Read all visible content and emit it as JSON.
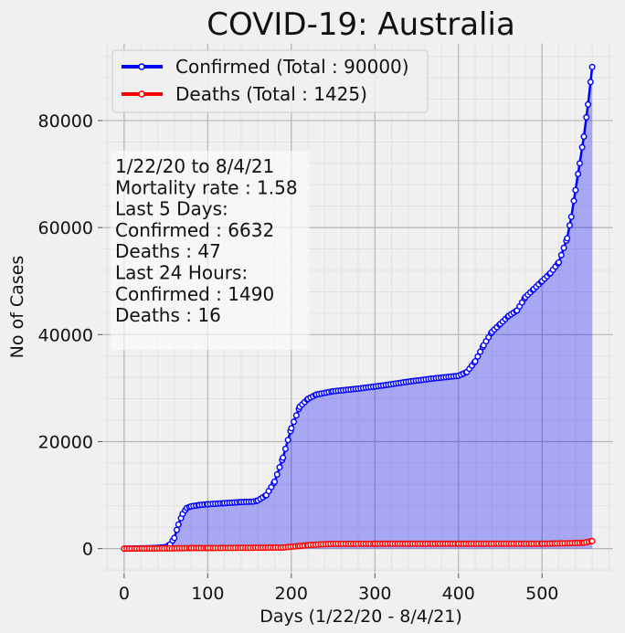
{
  "chart_data": {
    "type": "line",
    "title": "COVID-19: Australia",
    "xlabel": "Days (1/22/20 - 8/4/21)",
    "ylabel": "No of Cases",
    "xlim": [
      -25,
      585
    ],
    "ylim": [
      -4500,
      94500
    ],
    "x_ticks": [
      0,
      100,
      200,
      300,
      400,
      500
    ],
    "y_ticks": [
      0,
      20000,
      40000,
      60000,
      80000
    ],
    "x_tick_labels": [
      "0",
      "100",
      "200",
      "300",
      "400",
      "500"
    ],
    "y_tick_labels": [
      "0",
      "20000",
      "40000",
      "60000",
      "80000"
    ],
    "grid": true,
    "legend_position": "upper-left",
    "series": [
      {
        "name": "Confirmed (Total : 90000)",
        "color": "#0000ff",
        "fill_color": "#0000ff",
        "marker": "hollow-circle",
        "points": [
          [
            0,
            0
          ],
          [
            35,
            100
          ],
          [
            50,
            300
          ],
          [
            55,
            800
          ],
          [
            60,
            2000
          ],
          [
            65,
            4500
          ],
          [
            70,
            6500
          ],
          [
            75,
            7600
          ],
          [
            80,
            7900
          ],
          [
            90,
            8150
          ],
          [
            100,
            8300
          ],
          [
            120,
            8500
          ],
          [
            140,
            8700
          ],
          [
            155,
            8800
          ],
          [
            160,
            9000
          ],
          [
            170,
            10000
          ],
          [
            180,
            12500
          ],
          [
            190,
            17000
          ],
          [
            200,
            22500
          ],
          [
            210,
            26500
          ],
          [
            220,
            28000
          ],
          [
            230,
            28800
          ],
          [
            250,
            29400
          ],
          [
            280,
            29900
          ],
          [
            310,
            30500
          ],
          [
            340,
            31200
          ],
          [
            370,
            31800
          ],
          [
            400,
            32300
          ],
          [
            410,
            33000
          ],
          [
            420,
            35000
          ],
          [
            430,
            38000
          ],
          [
            440,
            40500
          ],
          [
            450,
            42000
          ],
          [
            460,
            43500
          ],
          [
            470,
            44500
          ],
          [
            480,
            47000
          ],
          [
            490,
            48500
          ],
          [
            500,
            50000
          ],
          [
            510,
            51500
          ],
          [
            520,
            53500
          ],
          [
            530,
            58000
          ],
          [
            535,
            62000
          ],
          [
            540,
            67000
          ],
          [
            545,
            72000
          ],
          [
            550,
            77000
          ],
          [
            555,
            83000
          ],
          [
            560,
            90000
          ]
        ]
      },
      {
        "name": "Deaths (Total : 1425)",
        "color": "#ff0000",
        "marker": "hollow-circle",
        "points": [
          [
            0,
            0
          ],
          [
            60,
            50
          ],
          [
            80,
            100
          ],
          [
            100,
            102
          ],
          [
            190,
            200
          ],
          [
            210,
            500
          ],
          [
            220,
            650
          ],
          [
            235,
            800
          ],
          [
            250,
            900
          ],
          [
            300,
            909
          ],
          [
            400,
            909
          ],
          [
            500,
            920
          ],
          [
            530,
            1000
          ],
          [
            550,
            1100
          ],
          [
            560,
            1425
          ]
        ]
      }
    ],
    "info_box": {
      "lines": [
        "1/22/20 to 8/4/21",
        "Mortality rate : 1.58",
        "Last 5 Days:",
        "Confirmed : 6632",
        "Deaths : 47",
        "Last 24 Hours:",
        "Confirmed : 1490",
        "Deaths : 16"
      ]
    }
  }
}
